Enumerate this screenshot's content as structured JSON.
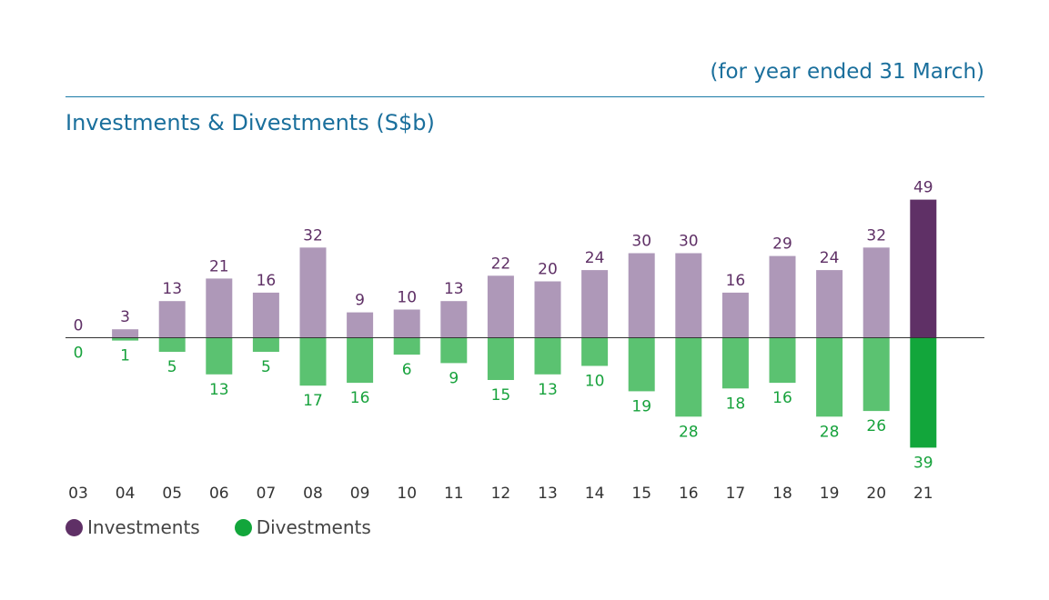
{
  "header": {
    "subtitle": "(for year ended 31 March)",
    "title": "Investments & Divestments (S$b)"
  },
  "colors": {
    "investments": "#ae98b8",
    "investments_highlight": "#5f3066",
    "divestments": "#5bc271",
    "divestments_highlight": "#12a63b",
    "inv_label": "#5f3066",
    "div_label": "#17a23c",
    "axis_text": "#333333",
    "baseline": "#333333"
  },
  "legend": {
    "items": [
      {
        "label": "Investments",
        "color": "#5f3066"
      },
      {
        "label": "Divestments",
        "color": "#12a63b"
      }
    ]
  },
  "chart_data": {
    "type": "bar",
    "title": "Investments & Divestments (S$b)",
    "subtitle": "(for year ended 31 March)",
    "categories": [
      "03",
      "04",
      "05",
      "06",
      "07",
      "08",
      "09",
      "10",
      "11",
      "12",
      "13",
      "14",
      "15",
      "16",
      "17",
      "18",
      "19",
      "20",
      "21"
    ],
    "series": [
      {
        "name": "Investments",
        "values": [
          0,
          3,
          13,
          21,
          16,
          32,
          9,
          10,
          13,
          22,
          20,
          24,
          30,
          30,
          16,
          29,
          24,
          32,
          49
        ]
      },
      {
        "name": "Divestments",
        "values": [
          0,
          1,
          5,
          13,
          5,
          17,
          16,
          6,
          9,
          15,
          13,
          10,
          19,
          28,
          18,
          16,
          28,
          26,
          39
        ]
      }
    ],
    "highlight_index": 18,
    "legend_position": "bottom-left",
    "grid": false
  }
}
